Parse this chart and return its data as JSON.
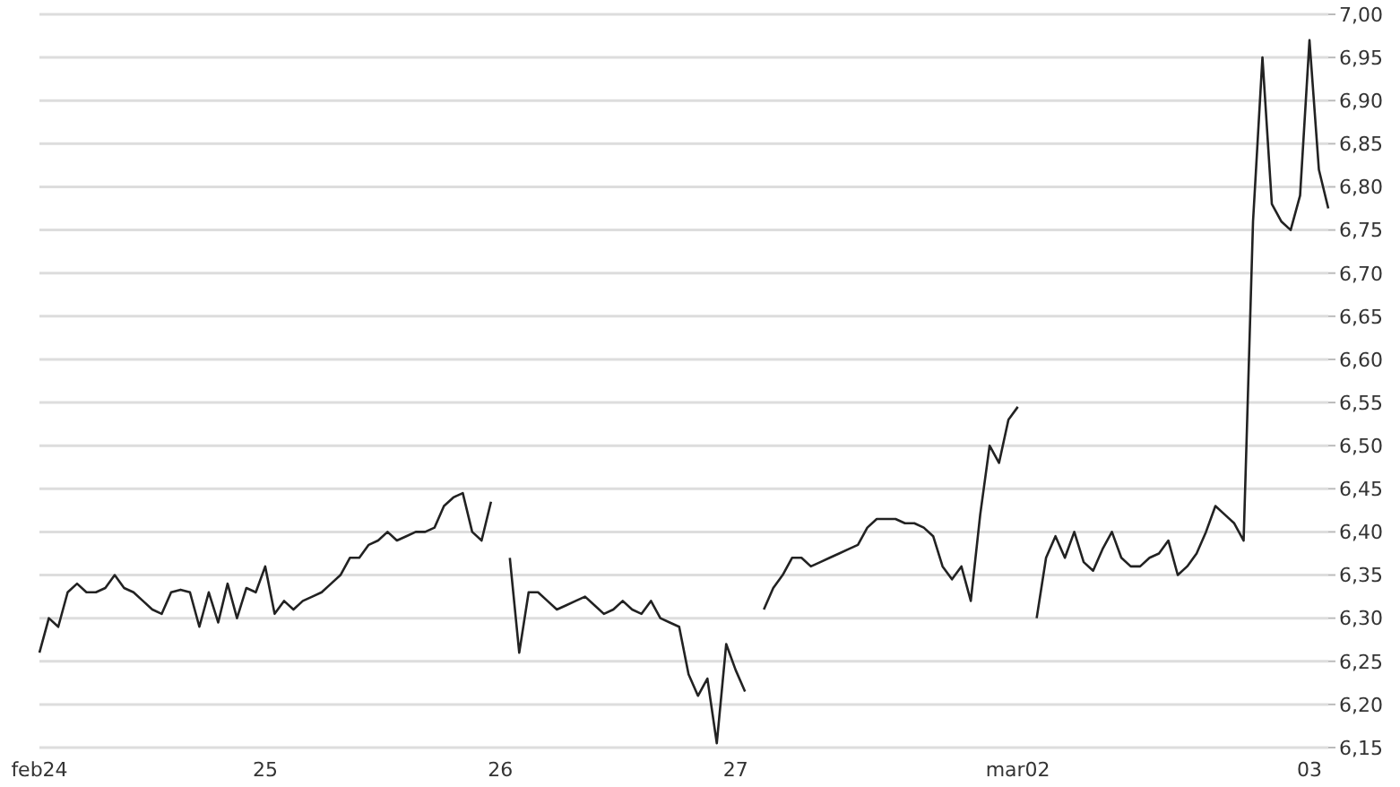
{
  "chart_data": {
    "type": "line",
    "categories": [
      "feb24",
      null,
      null,
      null,
      null,
      null,
      null,
      null,
      null,
      null,
      null,
      null,
      null,
      null,
      null,
      null,
      null,
      null,
      null,
      null,
      null,
      null,
      null,
      null,
      "25",
      null,
      null,
      null,
      null,
      null,
      null,
      null,
      null,
      null,
      null,
      null,
      null,
      null,
      null,
      null,
      null,
      null,
      null,
      null,
      null,
      null,
      null,
      null,
      null,
      "26",
      null,
      null,
      null,
      null,
      null,
      null,
      null,
      null,
      null,
      null,
      null,
      null,
      null,
      null,
      null,
      null,
      null,
      null,
      null,
      null,
      null,
      null,
      null,
      null,
      "27",
      null,
      null,
      null,
      null,
      null,
      null,
      null,
      null,
      null,
      null,
      null,
      null,
      null,
      null,
      null,
      null,
      null,
      null,
      null,
      null,
      null,
      null,
      null,
      null,
      null,
      null,
      null,
      null,
      null,
      "mar02",
      null,
      null,
      null,
      null,
      null,
      null,
      null,
      null,
      null,
      null,
      null,
      null,
      null,
      null,
      null,
      null,
      null,
      null,
      null,
      null,
      null,
      null,
      null,
      null,
      null,
      null,
      null,
      null,
      null,
      null,
      "03",
      null,
      null
    ],
    "series": [
      {
        "color": "#222222",
        "values": [
          6.26,
          6.3,
          6.29,
          6.33,
          6.34,
          6.33,
          6.33,
          6.335,
          6.35,
          6.335,
          6.33,
          6.32,
          6.31,
          6.305,
          6.33,
          6.333,
          6.33,
          6.29,
          6.33,
          6.295,
          6.34,
          6.3,
          6.335,
          6.33,
          6.36,
          6.305,
          6.32,
          6.31,
          6.32,
          6.325,
          6.33,
          6.34,
          6.35,
          6.37,
          6.37,
          6.385,
          6.39,
          6.4,
          6.39,
          6.395,
          6.4,
          6.4,
          6.405,
          6.43,
          6.44,
          6.445,
          6.4,
          6.39,
          6.435,
          null,
          6.37,
          6.26,
          6.33,
          6.33,
          6.32,
          6.31,
          6.315,
          6.32,
          6.325,
          6.315,
          6.305,
          6.31,
          6.32,
          6.31,
          6.305,
          6.32,
          6.3,
          6.295,
          6.29,
          6.235,
          6.21,
          6.23,
          6.155,
          6.27,
          6.24,
          6.215,
          null,
          6.31,
          6.335,
          6.35,
          6.37,
          6.37,
          6.36,
          6.365,
          6.37,
          6.375,
          6.38,
          6.385,
          6.405,
          6.415,
          6.415,
          6.415,
          6.41,
          6.41,
          6.405,
          6.395,
          6.36,
          6.345,
          6.36,
          6.32,
          6.42,
          6.5,
          6.48,
          6.53,
          6.545,
          null,
          6.3,
          6.37,
          6.395,
          6.37,
          6.4,
          6.365,
          6.355,
          6.38,
          6.4,
          6.37,
          6.36,
          6.36,
          6.37,
          6.375,
          6.39,
          6.35,
          6.36,
          6.375,
          6.4,
          6.43,
          6.42,
          6.41,
          6.39,
          6.76,
          6.95,
          6.78,
          6.76,
          6.75,
          6.79,
          6.97,
          6.82,
          6.775
        ]
      }
    ],
    "ylim": [
      6.15,
      7.0
    ],
    "yticks": [
      {
        "value": 6.15,
        "label": "6,15"
      },
      {
        "value": 6.2,
        "label": "6,20"
      },
      {
        "value": 6.25,
        "label": "6,25"
      },
      {
        "value": 6.3,
        "label": "6,30"
      },
      {
        "value": 6.35,
        "label": "6,35"
      },
      {
        "value": 6.4,
        "label": "6,40"
      },
      {
        "value": 6.45,
        "label": "6,45"
      },
      {
        "value": 6.5,
        "label": "6,50"
      },
      {
        "value": 6.55,
        "label": "6,55"
      },
      {
        "value": 6.6,
        "label": "6,60"
      },
      {
        "value": 6.65,
        "label": "6,65"
      },
      {
        "value": 6.7,
        "label": "6,70"
      },
      {
        "value": 6.75,
        "label": "6,75"
      },
      {
        "value": 6.8,
        "label": "6,80"
      },
      {
        "value": 6.85,
        "label": "6,85"
      },
      {
        "value": 6.9,
        "label": "6,90"
      },
      {
        "value": 6.95,
        "label": "6,95"
      },
      {
        "value": 7.0,
        "label": "7,00"
      }
    ],
    "grid": "y",
    "legend": false,
    "marker": "none",
    "line_style": "solid"
  }
}
